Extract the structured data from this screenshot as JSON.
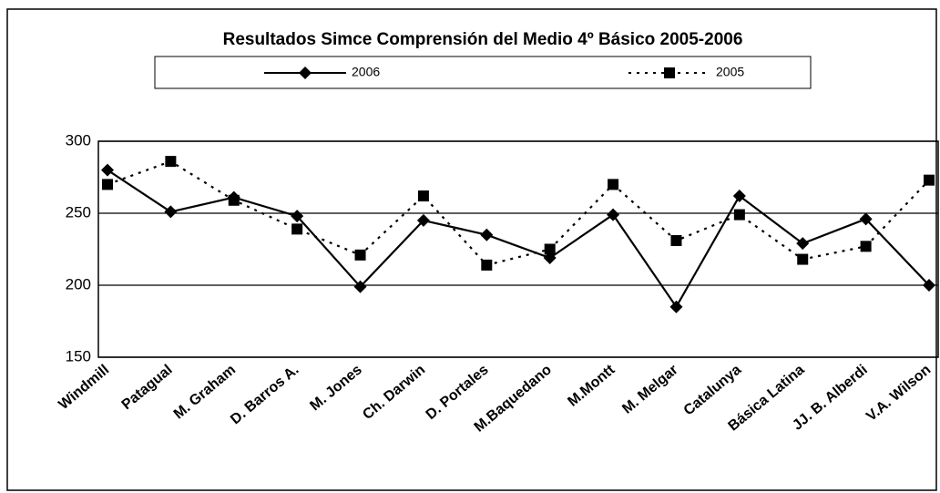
{
  "chart_data": {
    "type": "line",
    "title": "Resultados Simce Comprensión del Medio 4º Básico 2005-2006",
    "categories": [
      "Windmill",
      "Patagual",
      "M. Graham",
      "D. Barros A.",
      "M. Jones",
      "Ch. Darwin",
      "D. Portales",
      "M.Baquedano",
      "M.Montt",
      "M. Melgar",
      "Catalunya",
      "Básica Latina",
      "JJ. B. Alberdi",
      "V.A. Wilson"
    ],
    "series": [
      {
        "name": "2006",
        "color": "#000000",
        "values": [
          280,
          251,
          261,
          248,
          199,
          245,
          235,
          219,
          249,
          185,
          262,
          229,
          246,
          200
        ]
      },
      {
        "name": "2005",
        "color": "#000000",
        "values": [
          270,
          286,
          259,
          239,
          221,
          262,
          214,
          225,
          270,
          231,
          249,
          218,
          227,
          273
        ]
      }
    ],
    "ylim": [
      150,
      300
    ],
    "yticks": [
      150,
      200,
      250,
      300
    ],
    "grid": true
  }
}
